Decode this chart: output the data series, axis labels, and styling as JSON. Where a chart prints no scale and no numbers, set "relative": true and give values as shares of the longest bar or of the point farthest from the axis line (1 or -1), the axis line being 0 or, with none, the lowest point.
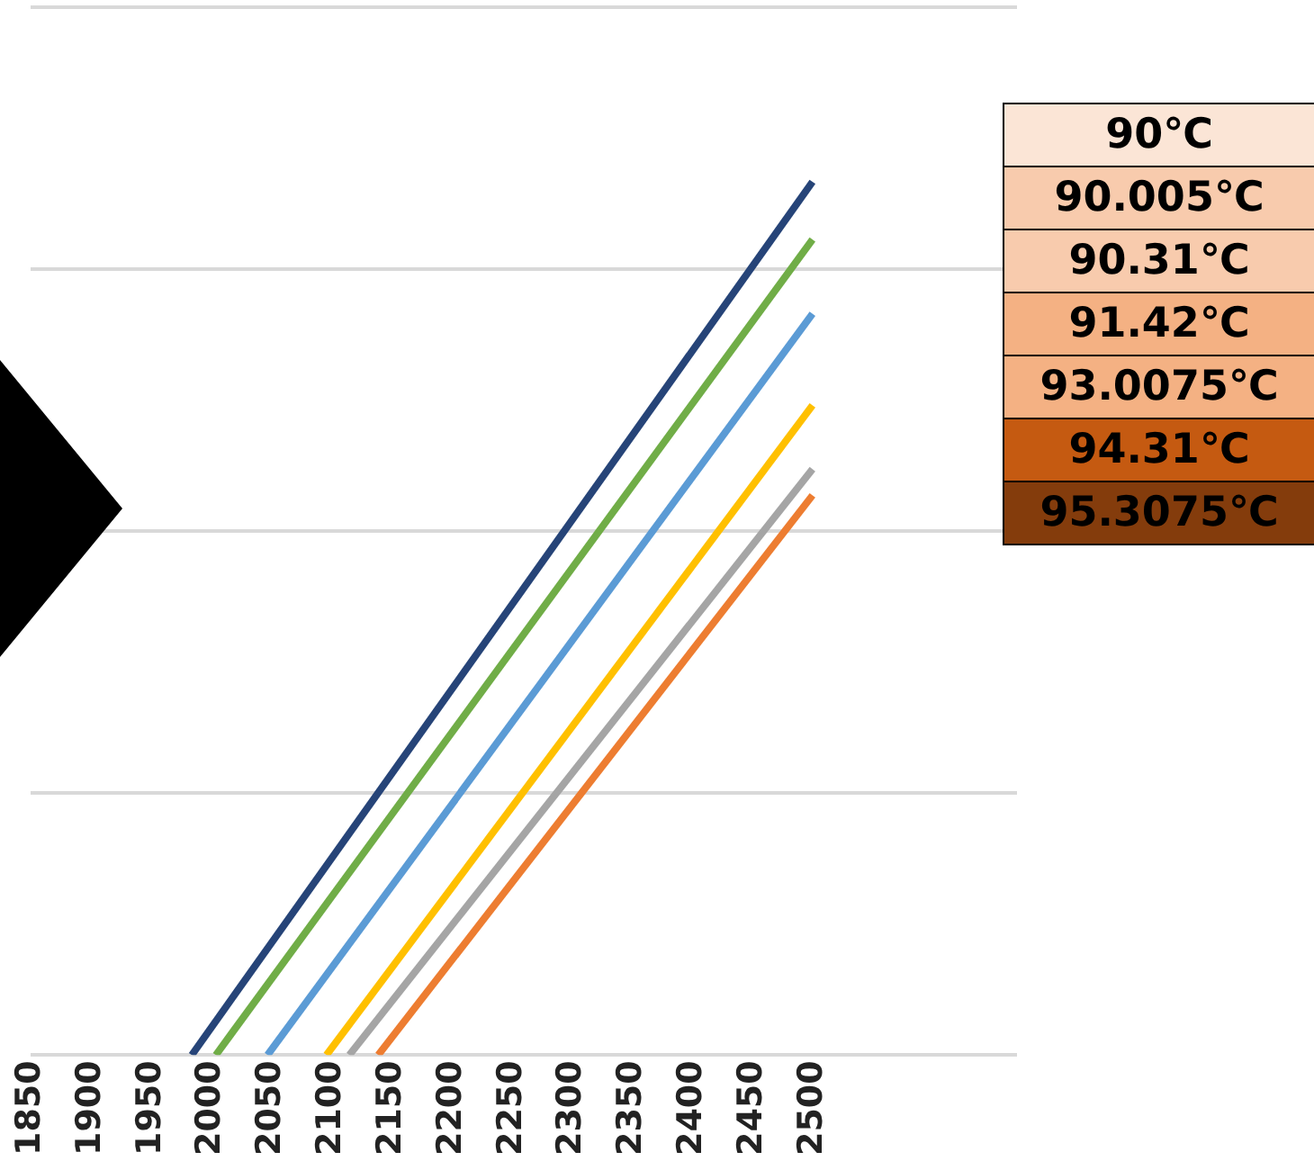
{
  "chart_data": {
    "type": "line",
    "relative": true,
    "grid": "y",
    "marker": "none",
    "line_style": "solid",
    "legend": false,
    "xlim": [
      1850,
      2670
    ],
    "xticks": [
      1850,
      1900,
      1950,
      2000,
      2050,
      2100,
      2150,
      2200,
      2250,
      2300,
      2350,
      2400,
      2450,
      2500
    ],
    "annotations": [
      "90℃",
      "90.005℃",
      "90.31℃",
      "91.42℃",
      "93.0075℃",
      "94.31℃",
      "95.3075℃"
    ],
    "series": [
      {
        "color": "#264478",
        "x": [
          1984,
          2500
        ],
        "values": [
          0,
          1
        ]
      },
      {
        "color": "#70ad47",
        "x": [
          2004,
          2500
        ],
        "values": [
          0,
          0.934
        ]
      },
      {
        "color": "#5b9bd5",
        "x": [
          2047,
          2500
        ],
        "values": [
          0,
          0.849
        ]
      },
      {
        "color": "#ffc000",
        "x": [
          2096,
          2500
        ],
        "values": [
          0,
          0.744
        ]
      },
      {
        "color": "#a5a5a5",
        "x": [
          2115,
          2500
        ],
        "values": [
          0,
          0.671
        ]
      },
      {
        "color": "#ed7d31",
        "x": [
          2139,
          2500
        ],
        "values": [
          0,
          0.641
        ]
      }
    ]
  }
}
